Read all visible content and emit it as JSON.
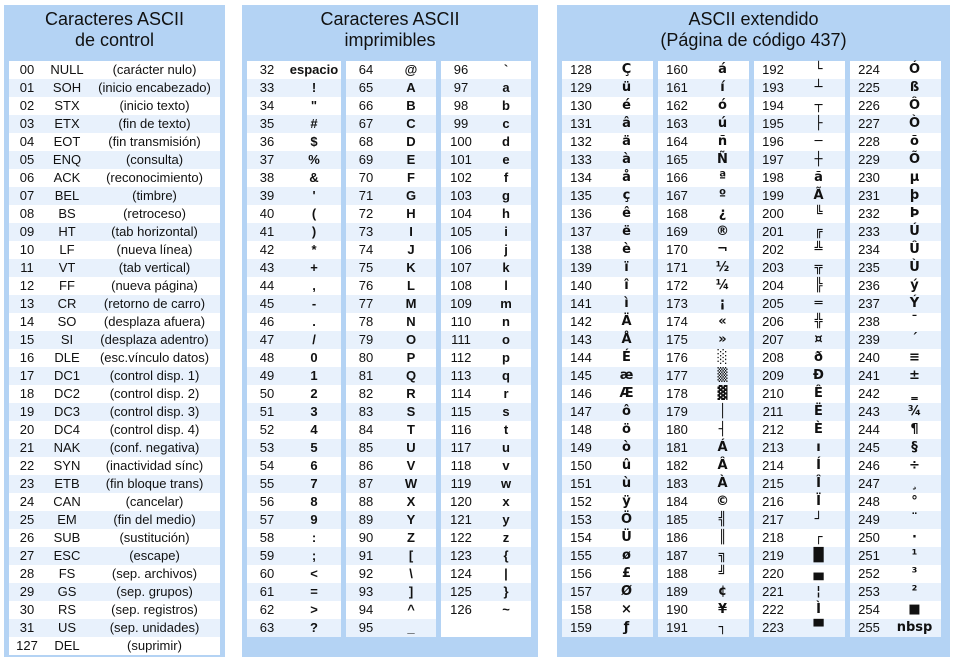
{
  "panels": {
    "control": {
      "title1": "Caracteres ASCII",
      "title2": "de control"
    },
    "printable": {
      "title1": "Caracteres ASCII",
      "title2": "imprimibles"
    },
    "extended": {
      "title1": "ASCII extendido",
      "title2": "(Página de código 437)"
    }
  },
  "control_rows": [
    [
      "00",
      "NULL",
      "(carácter nulo)"
    ],
    [
      "01",
      "SOH",
      "(inicio encabezado)"
    ],
    [
      "02",
      "STX",
      "(inicio texto)"
    ],
    [
      "03",
      "ETX",
      "(fin de texto)"
    ],
    [
      "04",
      "EOT",
      "(fin transmisión)"
    ],
    [
      "05",
      "ENQ",
      "(consulta)"
    ],
    [
      "06",
      "ACK",
      "(reconocimiento)"
    ],
    [
      "07",
      "BEL",
      "(timbre)"
    ],
    [
      "08",
      "BS",
      "(retroceso)"
    ],
    [
      "09",
      "HT",
      "(tab horizontal)"
    ],
    [
      "10",
      "LF",
      "(nueva línea)"
    ],
    [
      "11",
      "VT",
      "(tab vertical)"
    ],
    [
      "12",
      "FF",
      "(nueva página)"
    ],
    [
      "13",
      "CR",
      "(retorno de carro)"
    ],
    [
      "14",
      "SO",
      "(desplaza afuera)"
    ],
    [
      "15",
      "SI",
      "(desplaza adentro)"
    ],
    [
      "16",
      "DLE",
      "(esc.vínculo datos)"
    ],
    [
      "17",
      "DC1",
      "(control disp. 1)"
    ],
    [
      "18",
      "DC2",
      "(control disp. 2)"
    ],
    [
      "19",
      "DC3",
      "(control disp. 3)"
    ],
    [
      "20",
      "DC4",
      "(control disp. 4)"
    ],
    [
      "21",
      "NAK",
      "(conf. negativa)"
    ],
    [
      "22",
      "SYN",
      "(inactividad sínc)"
    ],
    [
      "23",
      "ETB",
      "(fin bloque trans)"
    ],
    [
      "24",
      "CAN",
      "(cancelar)"
    ],
    [
      "25",
      "EM",
      "(fin del medio)"
    ],
    [
      "26",
      "SUB",
      "(sustitución)"
    ],
    [
      "27",
      "ESC",
      "(escape)"
    ],
    [
      "28",
      "FS",
      "(sep. archivos)"
    ],
    [
      "29",
      "GS",
      "(sep. grupos)"
    ],
    [
      "30",
      "RS",
      "(sep. registros)"
    ],
    [
      "31",
      "US",
      "(sep. unidades)"
    ],
    [
      "127",
      "DEL",
      "(suprimir)"
    ]
  ],
  "printable_cols": [
    [
      [
        "32",
        "espacio"
      ],
      [
        "33",
        "!"
      ],
      [
        "34",
        "\""
      ],
      [
        "35",
        "#"
      ],
      [
        "36",
        "$"
      ],
      [
        "37",
        "%"
      ],
      [
        "38",
        "&"
      ],
      [
        "39",
        "'"
      ],
      [
        "40",
        "("
      ],
      [
        "41",
        ")"
      ],
      [
        "42",
        "*"
      ],
      [
        "43",
        "+"
      ],
      [
        "44",
        ","
      ],
      [
        "45",
        "-"
      ],
      [
        "46",
        "."
      ],
      [
        "47",
        "/"
      ],
      [
        "48",
        "0"
      ],
      [
        "49",
        "1"
      ],
      [
        "50",
        "2"
      ],
      [
        "51",
        "3"
      ],
      [
        "52",
        "4"
      ],
      [
        "53",
        "5"
      ],
      [
        "54",
        "6"
      ],
      [
        "55",
        "7"
      ],
      [
        "56",
        "8"
      ],
      [
        "57",
        "9"
      ],
      [
        "58",
        ":"
      ],
      [
        "59",
        ";"
      ],
      [
        "60",
        "<"
      ],
      [
        "61",
        "="
      ],
      [
        "62",
        ">"
      ],
      [
        "63",
        "?"
      ]
    ],
    [
      [
        "64",
        "@"
      ],
      [
        "65",
        "A"
      ],
      [
        "66",
        "B"
      ],
      [
        "67",
        "C"
      ],
      [
        "68",
        "D"
      ],
      [
        "69",
        "E"
      ],
      [
        "70",
        "F"
      ],
      [
        "71",
        "G"
      ],
      [
        "72",
        "H"
      ],
      [
        "73",
        "I"
      ],
      [
        "74",
        "J"
      ],
      [
        "75",
        "K"
      ],
      [
        "76",
        "L"
      ],
      [
        "77",
        "M"
      ],
      [
        "78",
        "N"
      ],
      [
        "79",
        "O"
      ],
      [
        "80",
        "P"
      ],
      [
        "81",
        "Q"
      ],
      [
        "82",
        "R"
      ],
      [
        "83",
        "S"
      ],
      [
        "84",
        "T"
      ],
      [
        "85",
        "U"
      ],
      [
        "86",
        "V"
      ],
      [
        "87",
        "W"
      ],
      [
        "88",
        "X"
      ],
      [
        "89",
        "Y"
      ],
      [
        "90",
        "Z"
      ],
      [
        "91",
        "["
      ],
      [
        "92",
        "\\"
      ],
      [
        "93",
        "]"
      ],
      [
        "94",
        "^"
      ],
      [
        "95",
        "_"
      ]
    ],
    [
      [
        "96",
        "`"
      ],
      [
        "97",
        "a"
      ],
      [
        "98",
        "b"
      ],
      [
        "99",
        "c"
      ],
      [
        "100",
        "d"
      ],
      [
        "101",
        "e"
      ],
      [
        "102",
        "f"
      ],
      [
        "103",
        "g"
      ],
      [
        "104",
        "h"
      ],
      [
        "105",
        "i"
      ],
      [
        "106",
        "j"
      ],
      [
        "107",
        "k"
      ],
      [
        "108",
        "l"
      ],
      [
        "109",
        "m"
      ],
      [
        "110",
        "n"
      ],
      [
        "111",
        "o"
      ],
      [
        "112",
        "p"
      ],
      [
        "113",
        "q"
      ],
      [
        "114",
        "r"
      ],
      [
        "115",
        "s"
      ],
      [
        "116",
        "t"
      ],
      [
        "117",
        "u"
      ],
      [
        "118",
        "v"
      ],
      [
        "119",
        "w"
      ],
      [
        "120",
        "x"
      ],
      [
        "121",
        "y"
      ],
      [
        "122",
        "z"
      ],
      [
        "123",
        "{"
      ],
      [
        "124",
        "|"
      ],
      [
        "125",
        "}"
      ],
      [
        "126",
        "~"
      ]
    ]
  ],
  "extended_cols": [
    [
      [
        "128",
        "Ç"
      ],
      [
        "129",
        "ü"
      ],
      [
        "130",
        "é"
      ],
      [
        "131",
        "â"
      ],
      [
        "132",
        "ä"
      ],
      [
        "133",
        "à"
      ],
      [
        "134",
        "å"
      ],
      [
        "135",
        "ç"
      ],
      [
        "136",
        "ê"
      ],
      [
        "137",
        "ë"
      ],
      [
        "138",
        "è"
      ],
      [
        "139",
        "ï"
      ],
      [
        "140",
        "î"
      ],
      [
        "141",
        "ì"
      ],
      [
        "142",
        "Ä"
      ],
      [
        "143",
        "Å"
      ],
      [
        "144",
        "É"
      ],
      [
        "145",
        "æ"
      ],
      [
        "146",
        "Æ"
      ],
      [
        "147",
        "ô"
      ],
      [
        "148",
        "ö"
      ],
      [
        "149",
        "ò"
      ],
      [
        "150",
        "û"
      ],
      [
        "151",
        "ù"
      ],
      [
        "152",
        "ÿ"
      ],
      [
        "153",
        "Ö"
      ],
      [
        "154",
        "Ü"
      ],
      [
        "155",
        "ø"
      ],
      [
        "156",
        "£"
      ],
      [
        "157",
        "Ø"
      ],
      [
        "158",
        "×"
      ],
      [
        "159",
        "ƒ"
      ]
    ],
    [
      [
        "160",
        "á"
      ],
      [
        "161",
        "í"
      ],
      [
        "162",
        "ó"
      ],
      [
        "163",
        "ú"
      ],
      [
        "164",
        "ñ"
      ],
      [
        "165",
        "Ñ"
      ],
      [
        "166",
        "ª"
      ],
      [
        "167",
        "º"
      ],
      [
        "168",
        "¿"
      ],
      [
        "169",
        "®"
      ],
      [
        "170",
        "¬"
      ],
      [
        "171",
        "½"
      ],
      [
        "172",
        "¼"
      ],
      [
        "173",
        "¡"
      ],
      [
        "174",
        "«"
      ],
      [
        "175",
        "»"
      ],
      [
        "176",
        "░"
      ],
      [
        "177",
        "▒"
      ],
      [
        "178",
        "▓"
      ],
      [
        "179",
        "│"
      ],
      [
        "180",
        "┤"
      ],
      [
        "181",
        "Á"
      ],
      [
        "182",
        "Â"
      ],
      [
        "183",
        "À"
      ],
      [
        "184",
        "©"
      ],
      [
        "185",
        "╣"
      ],
      [
        "186",
        "║"
      ],
      [
        "187",
        "╗"
      ],
      [
        "188",
        "╝"
      ],
      [
        "189",
        "¢"
      ],
      [
        "190",
        "¥"
      ],
      [
        "191",
        "┐"
      ]
    ],
    [
      [
        "192",
        "└"
      ],
      [
        "193",
        "┴"
      ],
      [
        "194",
        "┬"
      ],
      [
        "195",
        "├"
      ],
      [
        "196",
        "─"
      ],
      [
        "197",
        "┼"
      ],
      [
        "198",
        "ã"
      ],
      [
        "199",
        "Ã"
      ],
      [
        "200",
        "╚"
      ],
      [
        "201",
        "╔"
      ],
      [
        "202",
        "╩"
      ],
      [
        "203",
        "╦"
      ],
      [
        "204",
        "╠"
      ],
      [
        "205",
        "═"
      ],
      [
        "206",
        "╬"
      ],
      [
        "207",
        "¤"
      ],
      [
        "208",
        "ð"
      ],
      [
        "209",
        "Ð"
      ],
      [
        "210",
        "Ê"
      ],
      [
        "211",
        "Ë"
      ],
      [
        "212",
        "È"
      ],
      [
        "213",
        "ı"
      ],
      [
        "214",
        "Í"
      ],
      [
        "215",
        "Î"
      ],
      [
        "216",
        "Ï"
      ],
      [
        "217",
        "┘"
      ],
      [
        "218",
        "┌"
      ],
      [
        "219",
        "█"
      ],
      [
        "220",
        "▄"
      ],
      [
        "221",
        "¦"
      ],
      [
        "222",
        "Ì"
      ],
      [
        "223",
        "▀"
      ]
    ],
    [
      [
        "224",
        "Ó"
      ],
      [
        "225",
        "ß"
      ],
      [
        "226",
        "Ô"
      ],
      [
        "227",
        "Ò"
      ],
      [
        "228",
        "õ"
      ],
      [
        "229",
        "Õ"
      ],
      [
        "230",
        "µ"
      ],
      [
        "231",
        "þ"
      ],
      [
        "232",
        "Þ"
      ],
      [
        "233",
        "Ú"
      ],
      [
        "234",
        "Û"
      ],
      [
        "235",
        "Ù"
      ],
      [
        "236",
        "ý"
      ],
      [
        "237",
        "Ý"
      ],
      [
        "238",
        "¯"
      ],
      [
        "239",
        "´"
      ],
      [
        "240",
        "≡"
      ],
      [
        "241",
        "±"
      ],
      [
        "242",
        "‗"
      ],
      [
        "243",
        "¾"
      ],
      [
        "244",
        "¶"
      ],
      [
        "245",
        "§"
      ],
      [
        "246",
        "÷"
      ],
      [
        "247",
        "¸"
      ],
      [
        "248",
        "°"
      ],
      [
        "249",
        "¨"
      ],
      [
        "250",
        "·"
      ],
      [
        "251",
        "¹"
      ],
      [
        "252",
        "³"
      ],
      [
        "253",
        "²"
      ],
      [
        "254",
        "■"
      ],
      [
        "255",
        "nbsp"
      ]
    ]
  ]
}
